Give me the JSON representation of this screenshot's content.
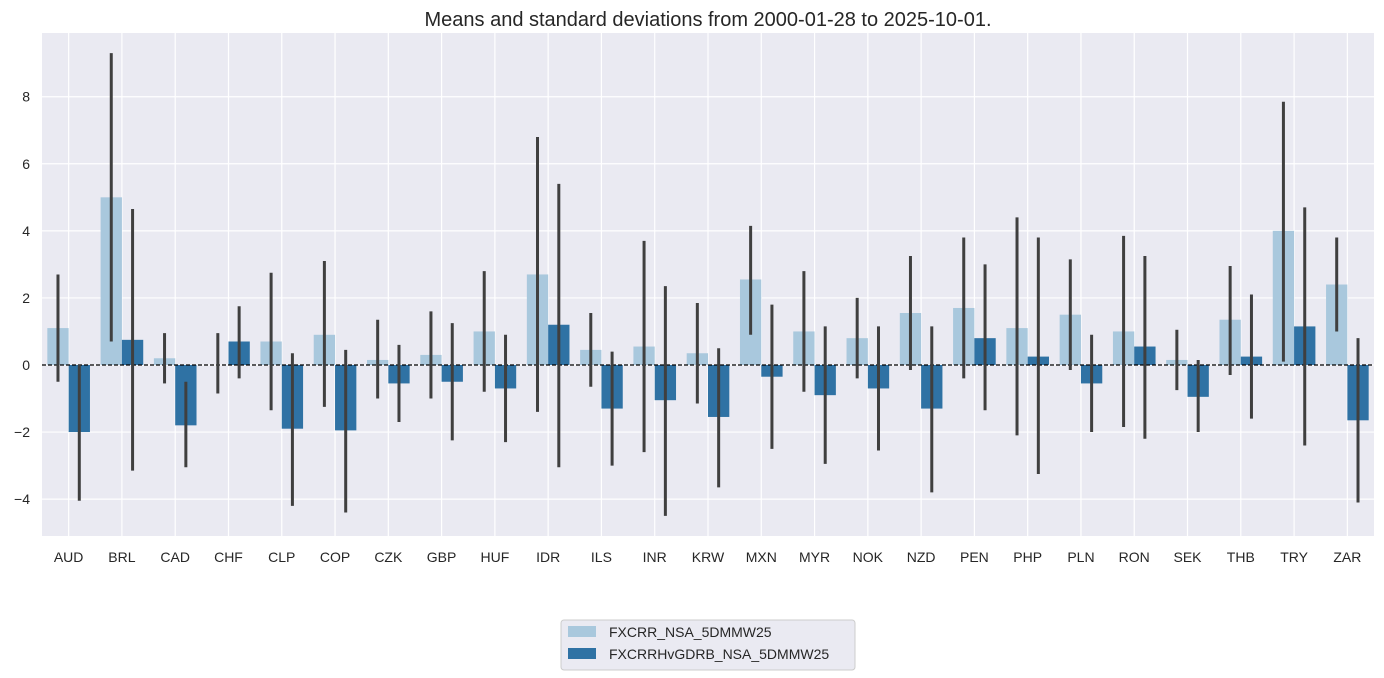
{
  "chart_data": {
    "type": "bar",
    "title": "Means and standard deviations from 2000-01-28 to 2025-10-01.",
    "xlabel": "",
    "ylabel": "",
    "ylim": [
      -5.1,
      9.9
    ],
    "yticks": [
      -4,
      -2,
      0,
      2,
      4,
      6,
      8
    ],
    "ytick_labels": [
      "−4",
      "−2",
      "0",
      "2",
      "4",
      "6",
      "8"
    ],
    "grid": true,
    "reference_line": 0,
    "legend_position": "bottom-center",
    "categories": [
      "AUD",
      "BRL",
      "CAD",
      "CHF",
      "CLP",
      "COP",
      "CZK",
      "GBP",
      "HUF",
      "IDR",
      "ILS",
      "INR",
      "KRW",
      "MXN",
      "MYR",
      "NOK",
      "NZD",
      "PEN",
      "PHP",
      "PLN",
      "RON",
      "SEK",
      "THB",
      "TRY",
      "ZAR"
    ],
    "series": [
      {
        "name": "FXCRR_NSA_5DMMW25",
        "color": "#a9c8dd",
        "values": [
          1.1,
          5.0,
          0.2,
          0.0,
          0.7,
          0.9,
          0.15,
          0.3,
          1.0,
          2.7,
          0.45,
          0.55,
          0.35,
          2.55,
          1.0,
          0.8,
          1.55,
          1.7,
          1.1,
          1.5,
          1.0,
          0.15,
          1.35,
          4.0,
          2.4
        ],
        "err_low": [
          -0.5,
          0.7,
          -0.55,
          -0.85,
          -1.35,
          -1.25,
          -1.0,
          -1.0,
          -0.8,
          -1.4,
          -0.65,
          -2.6,
          -1.15,
          0.9,
          -0.8,
          -0.4,
          -0.15,
          -0.4,
          -2.1,
          -0.15,
          -1.85,
          -0.75,
          -0.3,
          0.1,
          1.0
        ],
        "err_high": [
          2.7,
          9.3,
          0.95,
          0.95,
          2.75,
          3.1,
          1.35,
          1.6,
          2.8,
          6.8,
          1.55,
          3.7,
          1.85,
          4.15,
          2.8,
          2.0,
          3.25,
          3.8,
          4.4,
          3.15,
          3.85,
          1.05,
          2.95,
          7.85,
          3.8
        ]
      },
      {
        "name": "FXCRRHvGDRB_NSA_5DMMW25",
        "color": "#2f72a4",
        "values": [
          -2.0,
          0.75,
          -1.8,
          0.7,
          -1.9,
          -1.95,
          -0.55,
          -0.5,
          -0.7,
          1.2,
          -1.3,
          -1.05,
          -1.55,
          -0.35,
          -0.9,
          -0.7,
          -1.3,
          0.8,
          0.25,
          -0.55,
          0.55,
          -0.95,
          0.25,
          1.15,
          -1.65
        ],
        "err_low": [
          -4.05,
          -3.15,
          -3.05,
          -0.4,
          -4.2,
          -4.4,
          -1.7,
          -2.25,
          -2.3,
          -3.05,
          -3.0,
          -4.5,
          -3.65,
          -2.5,
          -2.95,
          -2.55,
          -3.8,
          -1.35,
          -3.25,
          -2.0,
          -2.2,
          -2.0,
          -1.6,
          -2.4,
          -4.1
        ],
        "err_high": [
          0.0,
          4.65,
          -0.5,
          1.75,
          0.35,
          0.45,
          0.6,
          1.25,
          0.9,
          5.4,
          0.4,
          2.35,
          0.5,
          1.8,
          1.15,
          1.15,
          1.15,
          3.0,
          3.8,
          0.9,
          3.25,
          0.15,
          2.1,
          4.7,
          0.8
        ]
      }
    ]
  }
}
